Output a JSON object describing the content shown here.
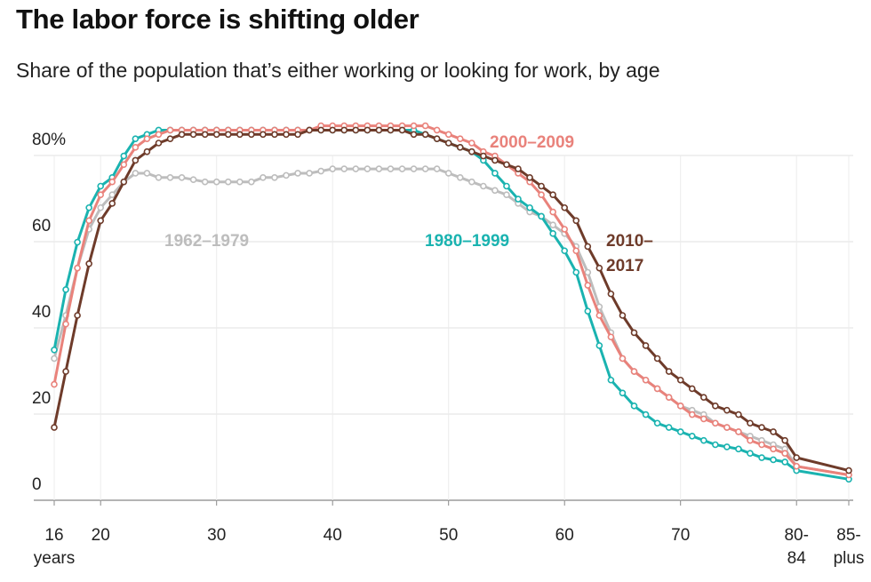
{
  "chart_data": {
    "type": "line",
    "title": "The labor force is shifting older",
    "subtitle": "Share of the population that’s either working or looking for work, by age",
    "xlabel": "",
    "ylabel": "",
    "y_ticks": [
      "80%",
      "60",
      "40",
      "20",
      "0"
    ],
    "y_tick_values": [
      80,
      60,
      40,
      20,
      0
    ],
    "ylim": [
      0,
      84
    ],
    "x_ticks": [
      {
        "age": 16,
        "lines": [
          "16",
          "years"
        ]
      },
      {
        "age": 20,
        "lines": [
          "20"
        ]
      },
      {
        "age": 30,
        "lines": [
          "30"
        ]
      },
      {
        "age": 40,
        "lines": [
          "40"
        ]
      },
      {
        "age": 50,
        "lines": [
          "50"
        ]
      },
      {
        "age": 60,
        "lines": [
          "60"
        ]
      },
      {
        "age": 70,
        "lines": [
          "70"
        ]
      },
      {
        "age": 80,
        "lines": [
          "80-",
          "84"
        ]
      },
      {
        "age": 85,
        "lines": [
          "85-",
          "plus"
        ]
      }
    ],
    "grid": true,
    "x": [
      16,
      17,
      18,
      19,
      20,
      21,
      22,
      23,
      24,
      25,
      26,
      27,
      28,
      29,
      30,
      31,
      32,
      33,
      34,
      35,
      36,
      37,
      38,
      39,
      40,
      41,
      42,
      43,
      44,
      45,
      46,
      47,
      48,
      49,
      50,
      51,
      52,
      53,
      54,
      55,
      56,
      57,
      58,
      59,
      60,
      61,
      62,
      63,
      64,
      65,
      66,
      67,
      68,
      69,
      70,
      71,
      72,
      73,
      74,
      75,
      76,
      77,
      78,
      79,
      80,
      85
    ],
    "series": [
      {
        "name": "1962–1979",
        "color": "#bdbdbd",
        "label_lines": [
          "1962–1979"
        ],
        "values": [
          30,
          40,
          51,
          60,
          65,
          68,
          71,
          73,
          73,
          72,
          72,
          72,
          71.5,
          71,
          71,
          71,
          71,
          71,
          72,
          72,
          72.5,
          73,
          73,
          73.5,
          74,
          74,
          74,
          74,
          74,
          74,
          74,
          74,
          74,
          74,
          73,
          72,
          71,
          70,
          69,
          68,
          66,
          64,
          63,
          61,
          59,
          56,
          50,
          42,
          36,
          30,
          27,
          25,
          23,
          21,
          19,
          18,
          17,
          15,
          14,
          13,
          12,
          11,
          10,
          9,
          5,
          3
        ]
      },
      {
        "name": "1980–1999",
        "color": "#1ab3b0",
        "label_lines": [
          "1980–1999"
        ],
        "values": [
          32,
          46,
          57,
          65,
          70,
          72,
          77,
          81,
          82,
          83,
          83,
          83,
          83,
          83,
          83,
          83,
          83,
          83,
          83,
          83,
          83,
          83,
          83,
          83,
          83,
          83,
          83,
          83,
          83,
          83,
          83,
          83,
          82,
          81,
          80,
          79,
          78,
          76,
          73,
          70,
          67,
          65,
          63,
          59,
          55,
          50,
          41,
          33,
          25,
          22,
          19,
          17,
          15,
          14,
          13,
          12,
          11,
          10,
          9.5,
          9,
          8,
          7,
          6.5,
          6,
          4,
          2
        ]
      },
      {
        "name": "2000–2009",
        "color": "#e9827b",
        "label_lines": [
          "2000–2009"
        ],
        "values": [
          24,
          38,
          51,
          62,
          68,
          71,
          75,
          79,
          81,
          82,
          83,
          83,
          83,
          83,
          83,
          83,
          83,
          83,
          83,
          83,
          83,
          83,
          83,
          84,
          84,
          84,
          84,
          84,
          84,
          84,
          84,
          84,
          84,
          83,
          82,
          81,
          80,
          78,
          77,
          75,
          73,
          71,
          68,
          64,
          60,
          55,
          47,
          40,
          35,
          30,
          27,
          25,
          23,
          21,
          19,
          17,
          16,
          15,
          14,
          13,
          11,
          10,
          9,
          8,
          5,
          3
        ]
      },
      {
        "name": "2010–2017",
        "color": "#6e3b2a",
        "label_lines": [
          "2010–",
          "2017"
        ],
        "values": [
          14,
          27,
          40,
          52,
          62,
          66,
          71,
          76,
          78,
          80,
          81,
          82,
          82,
          82,
          82,
          82,
          82,
          82,
          82,
          82,
          82,
          82,
          83,
          83,
          83,
          83,
          83,
          83,
          83,
          83,
          83,
          82,
          82,
          81,
          80,
          79,
          78,
          77,
          76,
          75,
          74,
          72,
          70,
          68,
          65,
          62,
          56,
          51,
          45,
          40,
          36,
          33,
          30,
          27,
          25,
          23,
          21,
          19,
          18,
          17,
          15,
          14,
          13,
          11,
          7,
          4
        ]
      }
    ]
  }
}
